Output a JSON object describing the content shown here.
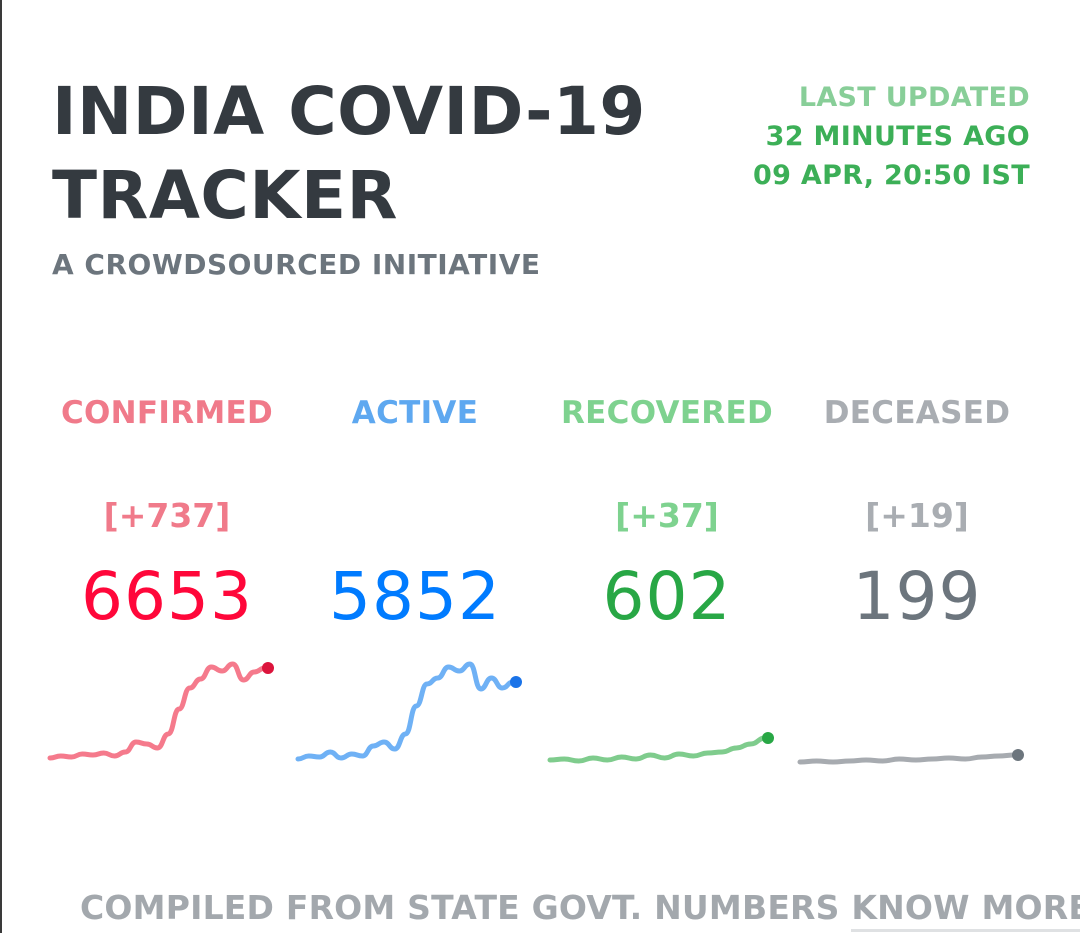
{
  "header": {
    "title_line1": "INDIA COVID-19",
    "title_line2": "TRACKER",
    "subtitle": "A CROWDSOURCED INITIATIVE",
    "last_updated_label": "LAST UPDATED",
    "last_updated_ago": "32 MINUTES AGO",
    "last_updated_time": "09 APR, 20:50 IST"
  },
  "stats": [
    {
      "name": "CONFIRMED",
      "delta": "[+737]",
      "count": "6653",
      "label_color": "#f07a8a",
      "count_color": "#ff073a",
      "line_color": "#f57a8c",
      "dot_color": "#dc143c",
      "trend": [
        0.06,
        0.08,
        0.07,
        0.1,
        0.09,
        0.11,
        0.08,
        0.12,
        0.22,
        0.2,
        0.16,
        0.3,
        0.55,
        0.76,
        0.85,
        0.97,
        0.93,
        1.0,
        0.84,
        0.92,
        0.96
      ]
    },
    {
      "name": "ACTIVE",
      "delta": "",
      "count": "5852",
      "label_color": "#5ea8f0",
      "count_color": "#007bff",
      "line_color": "#6fb1f5",
      "dot_color": "#1a73e8",
      "trend": [
        0.05,
        0.08,
        0.07,
        0.12,
        0.06,
        0.1,
        0.08,
        0.18,
        0.22,
        0.15,
        0.3,
        0.58,
        0.8,
        0.86,
        0.97,
        0.93,
        1.0,
        0.75,
        0.86,
        0.76,
        0.82
      ]
    },
    {
      "name": "RECOVERED",
      "delta": "[+37]",
      "count": "602",
      "label_color": "#7ed28f",
      "count_color": "#28a745",
      "line_color": "#7fcc8d",
      "dot_color": "#28a745",
      "trend": [
        0.04,
        0.05,
        0.03,
        0.06,
        0.04,
        0.07,
        0.05,
        0.09,
        0.06,
        0.1,
        0.08,
        0.11,
        0.12,
        0.16,
        0.2,
        0.26
      ]
    },
    {
      "name": "DECEASED",
      "delta": "[+19]",
      "count": "199",
      "label_color": "#a9adb2",
      "count_color": "#6c757d",
      "line_color": "#a7abb0",
      "dot_color": "#6c757d",
      "trend": [
        0.02,
        0.03,
        0.02,
        0.03,
        0.04,
        0.03,
        0.05,
        0.04,
        0.05,
        0.06,
        0.05,
        0.07,
        0.08,
        0.09
      ]
    }
  ],
  "footer": {
    "compiled_text": "COMPILED FROM STATE GOVT. NUMBERS",
    "know_more": "KNOW MORE"
  }
}
